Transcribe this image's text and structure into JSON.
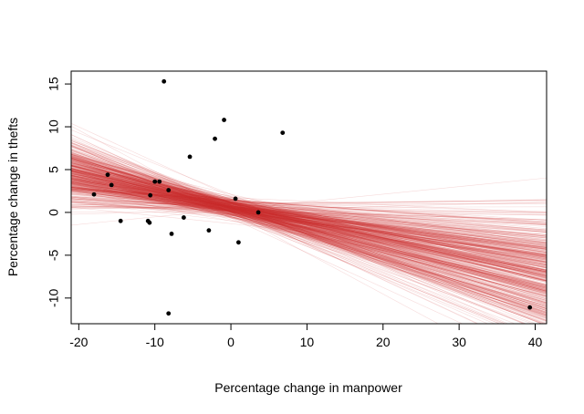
{
  "chart_data": {
    "type": "scatter",
    "xlabel": "Percentage change in manpower",
    "ylabel": "Percentage change in thefts",
    "xlim": [
      -21,
      41.5
    ],
    "ylim": [
      -13,
      16.5
    ],
    "xticks": [
      -20,
      -10,
      0,
      10,
      20,
      30,
      40
    ],
    "yticks": [
      -10,
      -5,
      0,
      5,
      10,
      15
    ],
    "xtick_labels": [
      "-20",
      "-10",
      "0",
      "10",
      "20",
      "30",
      "40"
    ],
    "ytick_labels": [
      "-10",
      "-5",
      "0",
      "5",
      "10",
      "15"
    ],
    "grid": false,
    "legend": "none",
    "point_color": "#000000",
    "line_color": "#cc3333",
    "points": [
      {
        "x": -18,
        "y": 2.1
      },
      {
        "x": -16.2,
        "y": 4.4
      },
      {
        "x": -15.7,
        "y": 3.2
      },
      {
        "x": -14.5,
        "y": -1.0
      },
      {
        "x": -10.9,
        "y": -1.0
      },
      {
        "x": -10.7,
        "y": -1.2
      },
      {
        "x": -10.6,
        "y": 2.0
      },
      {
        "x": -10.0,
        "y": 3.6
      },
      {
        "x": -9.4,
        "y": 3.6
      },
      {
        "x": -8.8,
        "y": 15.3
      },
      {
        "x": -8.2,
        "y": 2.6
      },
      {
        "x": -8.2,
        "y": -11.8
      },
      {
        "x": -7.8,
        "y": -2.5
      },
      {
        "x": -6.2,
        "y": -0.6
      },
      {
        "x": -5.4,
        "y": 6.5
      },
      {
        "x": -2.9,
        "y": -2.1
      },
      {
        "x": -2.1,
        "y": 8.6
      },
      {
        "x": -0.9,
        "y": 10.8
      },
      {
        "x": 0.6,
        "y": 1.6
      },
      {
        "x": 1.0,
        "y": -3.5
      },
      {
        "x": 3.6,
        "y": 0.0
      },
      {
        "x": 6.8,
        "y": 9.3
      },
      {
        "x": 39.3,
        "y": -11.1
      }
    ],
    "regression_lines": {
      "count": 500,
      "intercept_mean": 0.6,
      "intercept_sd": 0.55,
      "slope_mean": -0.19,
      "slope_sd": 0.085,
      "opacity": 0.18
    }
  }
}
